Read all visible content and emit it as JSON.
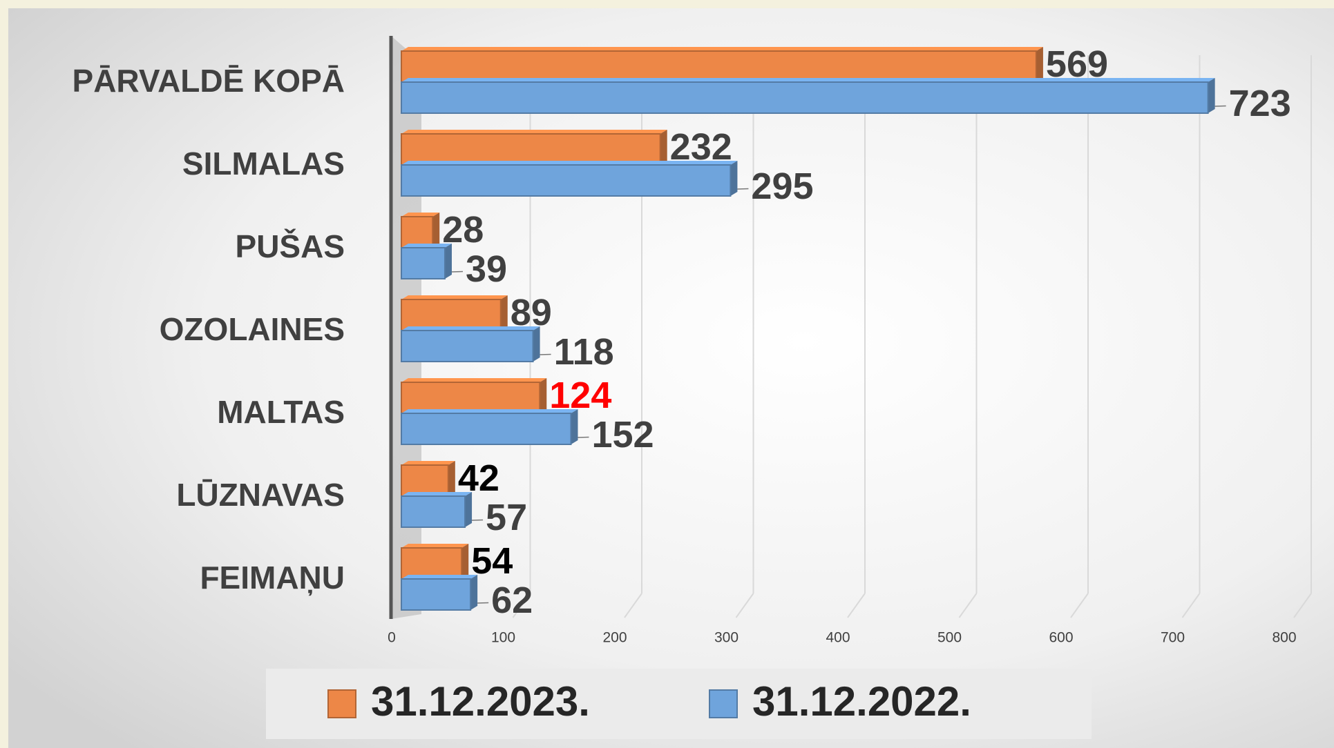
{
  "chart_data": {
    "type": "bar",
    "orientation": "horizontal",
    "categories": [
      "PĀRVALDĒ KOPĀ",
      "SILMALAS",
      "PUŠAS",
      "OZOLAINES",
      "MALTAS",
      "LŪZNAVAS",
      "FEIMAŅU"
    ],
    "series": [
      {
        "name": "31.12.2023.",
        "color": "#ed8747",
        "values": [
          569,
          232,
          28,
          89,
          124,
          42,
          54
        ],
        "label_colors": [
          "#404040",
          "#404040",
          "#404040",
          "#404040",
          "#ff0000",
          "#000000",
          "#000000"
        ]
      },
      {
        "name": "31.12.2022.",
        "color": "#6fa4dc",
        "values": [
          723,
          295,
          39,
          118,
          152,
          57,
          62
        ],
        "label_colors": [
          "#404040",
          "#404040",
          "#404040",
          "#404040",
          "#404040",
          "#404040",
          "#404040"
        ]
      }
    ],
    "xlim": [
      0,
      800
    ],
    "xticks": [
      0,
      100,
      200,
      300,
      400,
      500,
      600,
      700,
      800
    ],
    "grid": true,
    "legend": "bottom"
  }
}
